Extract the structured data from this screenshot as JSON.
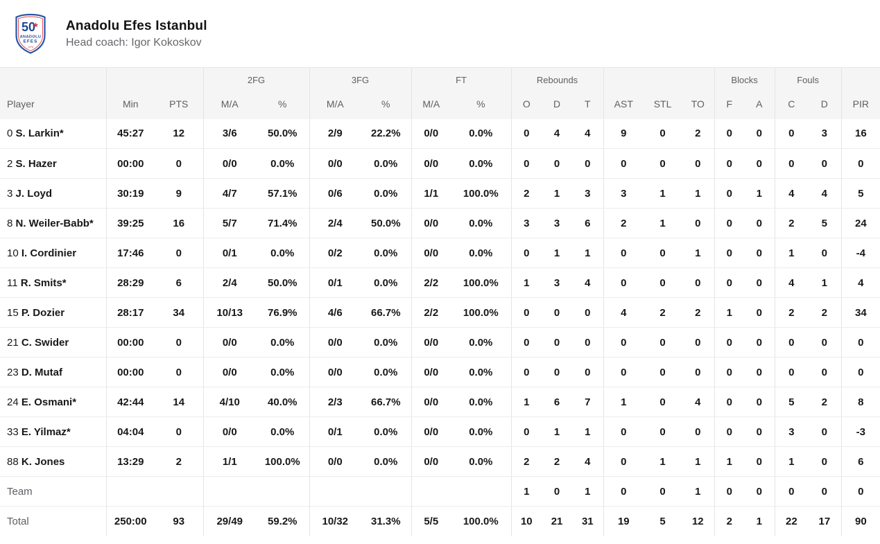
{
  "team": {
    "name": "Anadolu Efes Istanbul",
    "coach_label": "Head coach: Igor Kokoskov",
    "logo": {
      "number": "50",
      "line1": "ANADOLU",
      "line2": "EFES",
      "year": "1976"
    }
  },
  "colors": {
    "header_bg": "#f5f5f5",
    "divider": "#e4e4e4",
    "row_divider": "#ececec",
    "muted_text": "#5c5f63",
    "data_text": "#17181a",
    "logo_blue": "#1f4796",
    "logo_red": "#d6404a"
  },
  "table": {
    "header": {
      "groups": [
        {
          "label": "",
          "span": 1
        },
        {
          "label": "",
          "span": 2
        },
        {
          "label": "2FG",
          "span": 2
        },
        {
          "label": "3FG",
          "span": 2
        },
        {
          "label": "FT",
          "span": 2
        },
        {
          "label": "Rebounds",
          "span": 3
        },
        {
          "label": "",
          "span": 3
        },
        {
          "label": "Blocks",
          "span": 2
        },
        {
          "label": "Fouls",
          "span": 2
        },
        {
          "label": "",
          "span": 1
        }
      ],
      "columns": [
        "Player",
        "Min",
        "PTS",
        "M/A",
        "%",
        "M/A",
        "%",
        "M/A",
        "%",
        "O",
        "D",
        "T",
        "AST",
        "STL",
        "TO",
        "F",
        "A",
        "C",
        "D",
        "PIR"
      ]
    },
    "rows": [
      {
        "num": "0",
        "name": "S. Larkin*",
        "stats": [
          "45:27",
          "12",
          "3/6",
          "50.0%",
          "2/9",
          "22.2%",
          "0/0",
          "0.0%",
          "0",
          "4",
          "4",
          "9",
          "0",
          "2",
          "0",
          "0",
          "0",
          "3",
          "16"
        ]
      },
      {
        "num": "2",
        "name": "S. Hazer",
        "stats": [
          "00:00",
          "0",
          "0/0",
          "0.0%",
          "0/0",
          "0.0%",
          "0/0",
          "0.0%",
          "0",
          "0",
          "0",
          "0",
          "0",
          "0",
          "0",
          "0",
          "0",
          "0",
          "0"
        ]
      },
      {
        "num": "3",
        "name": "J. Loyd",
        "stats": [
          "30:19",
          "9",
          "4/7",
          "57.1%",
          "0/6",
          "0.0%",
          "1/1",
          "100.0%",
          "2",
          "1",
          "3",
          "3",
          "1",
          "1",
          "0",
          "1",
          "4",
          "4",
          "5"
        ]
      },
      {
        "num": "8",
        "name": "N. Weiler-Babb*",
        "stats": [
          "39:25",
          "16",
          "5/7",
          "71.4%",
          "2/4",
          "50.0%",
          "0/0",
          "0.0%",
          "3",
          "3",
          "6",
          "2",
          "1",
          "0",
          "0",
          "0",
          "2",
          "5",
          "24"
        ]
      },
      {
        "num": "10",
        "name": "I. Cordinier",
        "stats": [
          "17:46",
          "0",
          "0/1",
          "0.0%",
          "0/2",
          "0.0%",
          "0/0",
          "0.0%",
          "0",
          "1",
          "1",
          "0",
          "0",
          "1",
          "0",
          "0",
          "1",
          "0",
          "-4"
        ]
      },
      {
        "num": "11",
        "name": "R. Smits*",
        "stats": [
          "28:29",
          "6",
          "2/4",
          "50.0%",
          "0/1",
          "0.0%",
          "2/2",
          "100.0%",
          "1",
          "3",
          "4",
          "0",
          "0",
          "0",
          "0",
          "0",
          "4",
          "1",
          "4"
        ]
      },
      {
        "num": "15",
        "name": "P. Dozier",
        "stats": [
          "28:17",
          "34",
          "10/13",
          "76.9%",
          "4/6",
          "66.7%",
          "2/2",
          "100.0%",
          "0",
          "0",
          "0",
          "4",
          "2",
          "2",
          "1",
          "0",
          "2",
          "2",
          "34"
        ]
      },
      {
        "num": "21",
        "name": "C. Swider",
        "stats": [
          "00:00",
          "0",
          "0/0",
          "0.0%",
          "0/0",
          "0.0%",
          "0/0",
          "0.0%",
          "0",
          "0",
          "0",
          "0",
          "0",
          "0",
          "0",
          "0",
          "0",
          "0",
          "0"
        ]
      },
      {
        "num": "23",
        "name": "D. Mutaf",
        "stats": [
          "00:00",
          "0",
          "0/0",
          "0.0%",
          "0/0",
          "0.0%",
          "0/0",
          "0.0%",
          "0",
          "0",
          "0",
          "0",
          "0",
          "0",
          "0",
          "0",
          "0",
          "0",
          "0"
        ]
      },
      {
        "num": "24",
        "name": "E. Osmani*",
        "stats": [
          "42:44",
          "14",
          "4/10",
          "40.0%",
          "2/3",
          "66.7%",
          "0/0",
          "0.0%",
          "1",
          "6",
          "7",
          "1",
          "0",
          "4",
          "0",
          "0",
          "5",
          "2",
          "8"
        ]
      },
      {
        "num": "33",
        "name": "E. Yilmaz*",
        "stats": [
          "04:04",
          "0",
          "0/0",
          "0.0%",
          "0/1",
          "0.0%",
          "0/0",
          "0.0%",
          "0",
          "1",
          "1",
          "0",
          "0",
          "0",
          "0",
          "0",
          "3",
          "0",
          "-3"
        ]
      },
      {
        "num": "88",
        "name": "K. Jones",
        "stats": [
          "13:29",
          "2",
          "1/1",
          "100.0%",
          "0/0",
          "0.0%",
          "0/0",
          "0.0%",
          "2",
          "2",
          "4",
          "0",
          "1",
          "1",
          "1",
          "0",
          "1",
          "0",
          "6"
        ]
      }
    ],
    "team_row": {
      "label": "Team",
      "stats": [
        "",
        "",
        "",
        "",
        "",
        "",
        "",
        "",
        "1",
        "0",
        "1",
        "0",
        "0",
        "1",
        "0",
        "0",
        "0",
        "0",
        "0"
      ]
    },
    "total_row": {
      "label": "Total",
      "stats": [
        "250:00",
        "93",
        "29/49",
        "59.2%",
        "10/32",
        "31.3%",
        "5/5",
        "100.0%",
        "10",
        "21",
        "31",
        "19",
        "5",
        "12",
        "2",
        "1",
        "22",
        "17",
        "90"
      ]
    }
  }
}
